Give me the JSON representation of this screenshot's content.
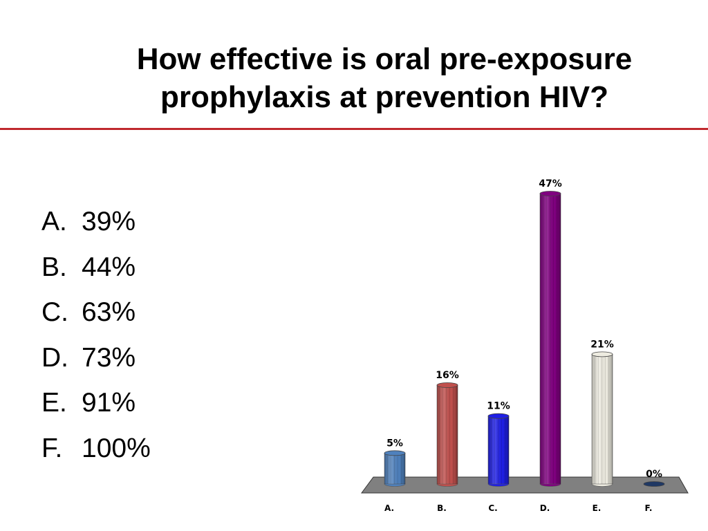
{
  "slide": {
    "title": "How effective is oral pre-exposure prophylaxis at prevention HIV?",
    "answers": [
      {
        "letter": "A.",
        "text": "39%"
      },
      {
        "letter": "B.",
        "text": "44%"
      },
      {
        "letter": "C.",
        "text": "63%"
      },
      {
        "letter": "D.",
        "text": "73%"
      },
      {
        "letter": "E.",
        "text": "91%"
      },
      {
        "letter": "F.",
        "text": "100%"
      }
    ]
  },
  "colors": {
    "rule": "#c0282d",
    "floor": "#808080"
  },
  "chart_data": {
    "type": "bar",
    "categories": [
      "A.",
      "B.",
      "C.",
      "D.",
      "E.",
      "F."
    ],
    "values": [
      5,
      16,
      11,
      47,
      21,
      0
    ],
    "data_labels": [
      "5%",
      "16%",
      "11%",
      "47%",
      "21%",
      "0%"
    ],
    "bar_colors": [
      "#4f81bd",
      "#c0504d",
      "#1f1fe6",
      "#800080",
      "#eeece1",
      "#1f3864"
    ],
    "ylim": [
      0,
      47
    ],
    "grid": false,
    "legend": "none"
  }
}
